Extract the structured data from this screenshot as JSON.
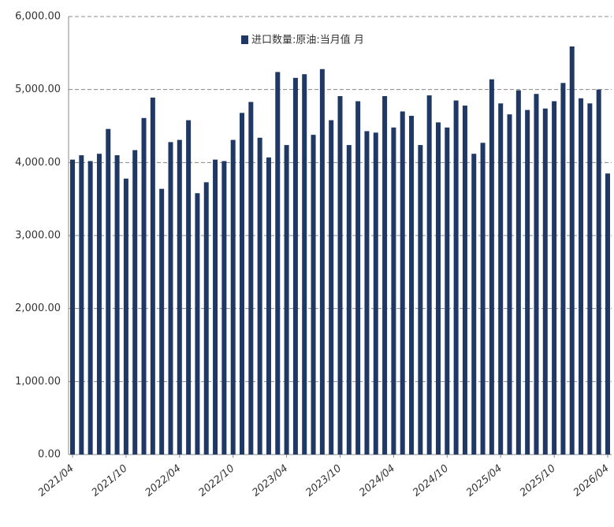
{
  "chart_data": {
    "type": "bar",
    "series": [
      {
        "name": "进口数量:原油:当月值 月",
        "color": "#1f3864",
        "values": [
          4040,
          4100,
          4020,
          4120,
          4460,
          4100,
          3780,
          4170,
          4610,
          4890,
          3640,
          4280,
          4310,
          4580,
          3580,
          3730,
          4040,
          4020,
          4310,
          4680,
          4830,
          4340,
          4070,
          5240,
          4240,
          5160,
          5210,
          4380,
          5280,
          4580,
          4910,
          4240,
          4840,
          4430,
          4410,
          4910,
          4480,
          4700,
          4640,
          4240,
          4920,
          4550,
          4480,
          4850,
          4780,
          4120,
          4270,
          5140,
          4810,
          4660,
          4990,
          4720,
          4940,
          4740,
          4840,
          5090,
          5590,
          4880,
          4810,
          5000,
          3850
        ]
      }
    ],
    "categories": [
      "2021/04",
      null,
      null,
      null,
      null,
      null,
      "2021/10",
      null,
      null,
      null,
      null,
      null,
      "2022/04",
      null,
      null,
      null,
      null,
      null,
      "2022/10",
      null,
      null,
      null,
      null,
      null,
      "2023/04",
      null,
      null,
      null,
      null,
      null,
      "2023/10",
      null,
      null,
      null,
      null,
      null,
      "2024/04",
      null,
      null,
      null,
      null,
      null,
      "2024/10",
      null,
      null,
      null,
      null,
      null,
      "2025/04",
      null,
      null,
      null,
      null,
      null,
      "2025/10",
      null,
      null,
      null,
      null,
      null,
      "2026/04"
    ],
    "ylim": [
      0,
      6000
    ],
    "yticks": [
      {
        "value": 0,
        "label": "0.00"
      },
      {
        "value": 1000,
        "label": "1,000.00"
      },
      {
        "value": 2000,
        "label": "2,000.00"
      },
      {
        "value": 3000,
        "label": "3,000.00"
      },
      {
        "value": 4000,
        "label": "4,000.00"
      },
      {
        "value": 5000,
        "label": "5,000.00"
      },
      {
        "value": 6000,
        "label": "6,000.00"
      }
    ],
    "grid": true
  }
}
